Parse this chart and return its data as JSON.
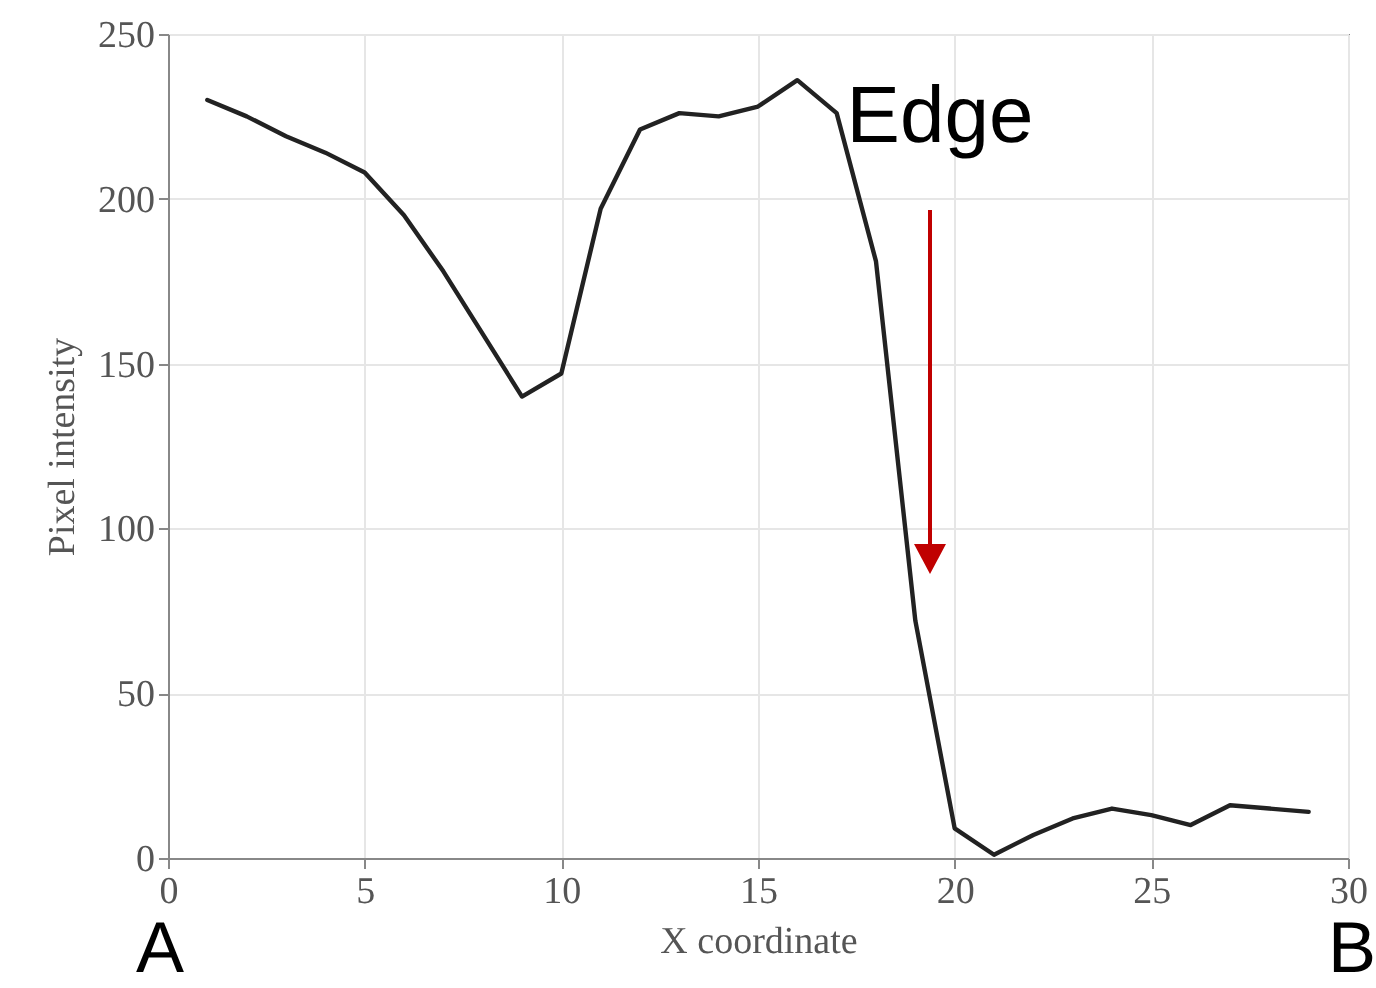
{
  "chart_data": {
    "type": "line",
    "xlabel": "X coordinate",
    "ylabel": "Pixel intensity",
    "x": [
      1,
      2,
      3,
      4,
      5,
      6,
      7,
      8,
      9,
      10,
      11,
      12,
      13,
      14,
      15,
      16,
      17,
      18,
      19,
      20,
      21,
      22,
      23,
      24,
      25,
      26,
      27,
      28,
      29
    ],
    "series": [
      {
        "color": "#222222",
        "values": [
          230,
          225,
          219,
          214,
          208,
          195,
          178,
          159,
          140,
          147,
          197,
          221,
          226,
          225,
          228,
          236,
          226,
          181,
          72,
          9,
          1,
          7,
          12,
          15,
          13,
          10,
          16,
          15,
          14
        ]
      }
    ],
    "xlim": [
      0,
      30
    ],
    "xticks": [
      0,
      5,
      10,
      15,
      20,
      25,
      30
    ],
    "ylim": [
      0,
      250
    ],
    "yticks": [
      0,
      50,
      100,
      150,
      200,
      250
    ],
    "grid": true,
    "marker": "none",
    "line_style": "solid",
    "annotations": [
      "Edge",
      "A",
      "B"
    ]
  }
}
